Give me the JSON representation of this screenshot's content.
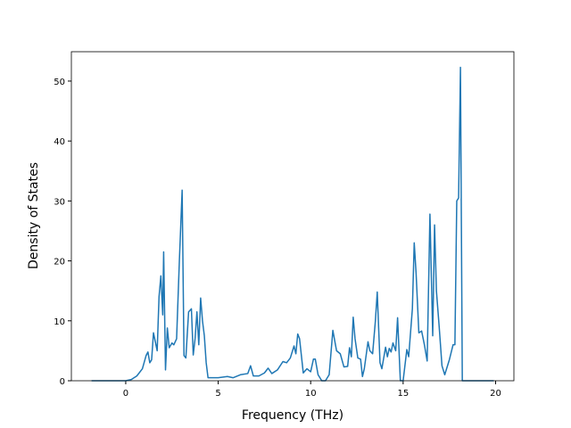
{
  "chart_data": {
    "type": "line",
    "x_label": "Frequency (THz)",
    "y_label": "Density of States",
    "x": [
      -1.85,
      -1,
      0,
      0.3,
      0.6,
      0.9,
      1.1,
      1.2,
      1.3,
      1.4,
      1.5,
      1.6,
      1.7,
      1.8,
      1.9,
      2.0,
      2.05,
      2.15,
      2.25,
      2.35,
      2.5,
      2.6,
      2.75,
      2.9,
      3.05,
      3.15,
      3.25,
      3.4,
      3.55,
      3.65,
      3.75,
      3.85,
      3.95,
      4.05,
      4.15,
      4.25,
      4.35,
      4.45,
      5,
      5.5,
      5.8,
      6.2,
      6.6,
      6.75,
      6.9,
      7.2,
      7.5,
      7.7,
      7.9,
      8.2,
      8.5,
      8.7,
      8.9,
      9.1,
      9.2,
      9.3,
      9.4,
      9.6,
      9.8,
      10,
      10.15,
      10.25,
      10.4,
      10.6,
      10.8,
      11,
      11.2,
      11.4,
      11.6,
      11.8,
      12.0,
      12.1,
      12.2,
      12.3,
      12.4,
      12.55,
      12.7,
      12.8,
      12.9,
      13.1,
      13.2,
      13.35,
      13.5,
      13.6,
      13.75,
      13.85,
      14.05,
      14.15,
      14.25,
      14.35,
      14.45,
      14.6,
      14.7,
      14.85,
      15.0,
      15.2,
      15.3,
      15.5,
      15.6,
      15.7,
      15.85,
      16,
      16.15,
      16.3,
      16.45,
      16.6,
      16.7,
      16.8,
      16.95,
      17.1,
      17.25,
      17.5,
      17.7,
      17.8,
      17.9,
      18.0,
      18.1,
      18.2,
      19.9
    ],
    "series": [
      {
        "color": "#1f77b4",
        "values": [
          0,
          0,
          0,
          0.2,
          0.8,
          2,
          4.2,
          4.8,
          3,
          3.5,
          8,
          6.5,
          5,
          14,
          17.5,
          11,
          21.5,
          1.8,
          8.8,
          5.5,
          6.3,
          6,
          7,
          20,
          31.8,
          4.2,
          3.8,
          11.5,
          12,
          4.3,
          7,
          11.5,
          6,
          13.8,
          10,
          7.5,
          3,
          0.5,
          0.5,
          0.7,
          0.5,
          1,
          1.2,
          2.5,
          0.8,
          0.8,
          1.3,
          2.1,
          1.2,
          1.8,
          3.2,
          3,
          3.8,
          5.8,
          4.5,
          7.8,
          7,
          1.3,
          2,
          1.5,
          3.6,
          3.6,
          1,
          0,
          0,
          1,
          8.4,
          5,
          4.5,
          2.3,
          2.4,
          5.5,
          4,
          10.6,
          7,
          3.8,
          3.6,
          0.7,
          2,
          6.5,
          5,
          4.5,
          10,
          14.8,
          3,
          2,
          5.6,
          4,
          5.4,
          4.8,
          6.3,
          5,
          10.5,
          0,
          0,
          5.2,
          4,
          12,
          23,
          18,
          8,
          8.3,
          6,
          3.3,
          27.8,
          7.5,
          26,
          15,
          9,
          2.5,
          1,
          3.5,
          6,
          6,
          30,
          30.5,
          52.3,
          0,
          0
        ]
      }
    ],
    "xlim": [
      -2.94,
      20.99
    ],
    "xticks": [
      0,
      5,
      10,
      15,
      20
    ],
    "ylim": [
      0,
      54.9
    ],
    "yticks": [
      0,
      10,
      20,
      30,
      40,
      50
    ]
  }
}
